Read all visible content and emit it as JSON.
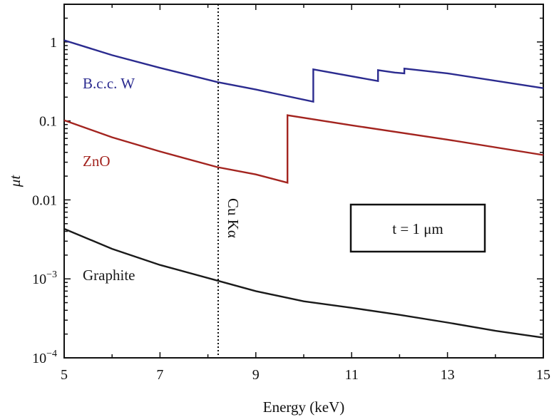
{
  "chart_data": {
    "type": "line",
    "title": "",
    "xlabel": "Energy (keV)",
    "ylabel": "μt",
    "xlim": [
      5,
      15
    ],
    "ylim": [
      0.0001,
      3
    ],
    "yscale": "log",
    "grid": false,
    "xticks": [
      5,
      7,
      9,
      11,
      13,
      15
    ],
    "xtick_labels": [
      "5",
      "7",
      "9",
      "11",
      "13",
      "15"
    ],
    "yticks": [
      0.0001,
      0.001,
      0.01,
      0.1,
      1
    ],
    "ytick_labels": [
      {
        "base": "10",
        "exp": "−4"
      },
      {
        "base": "10",
        "exp": "−3"
      },
      {
        "base": "0.01",
        "exp": ""
      },
      {
        "base": "0.1",
        "exp": ""
      },
      {
        "base": "1",
        "exp": ""
      }
    ],
    "series": [
      {
        "name": "B.c.c. W",
        "color": "#2b2b8f",
        "x": [
          5,
          6,
          7,
          8.2,
          9,
          10.2,
          10.2,
          11.55,
          11.55,
          11.9,
          12.1,
          12.1,
          13,
          15
        ],
        "y": [
          1.05,
          0.68,
          0.47,
          0.31,
          0.25,
          0.175,
          0.45,
          0.32,
          0.44,
          0.41,
          0.4,
          0.46,
          0.4,
          0.26
        ]
      },
      {
        "name": "ZnO",
        "color": "#a3241f",
        "x": [
          5,
          6,
          7,
          8.2,
          9,
          9.66,
          9.66,
          11,
          13,
          15
        ],
        "y": [
          0.102,
          0.062,
          0.041,
          0.026,
          0.021,
          0.0165,
          0.118,
          0.088,
          0.058,
          0.037
        ]
      },
      {
        "name": "Graphite",
        "color": "#1a1a1a",
        "x": [
          5,
          6,
          7,
          8.2,
          9,
          10,
          11,
          12,
          13,
          14,
          15
        ],
        "y": [
          0.0043,
          0.0024,
          0.0015,
          0.00095,
          0.0007,
          0.00052,
          0.00043,
          0.00035,
          0.00028,
          0.00022,
          0.00018
        ]
      }
    ],
    "reference_line": {
      "x": 8.04,
      "label": "Cu Kα",
      "style": "dotted"
    },
    "annotation_box": {
      "text": "t = 1 μm"
    }
  }
}
